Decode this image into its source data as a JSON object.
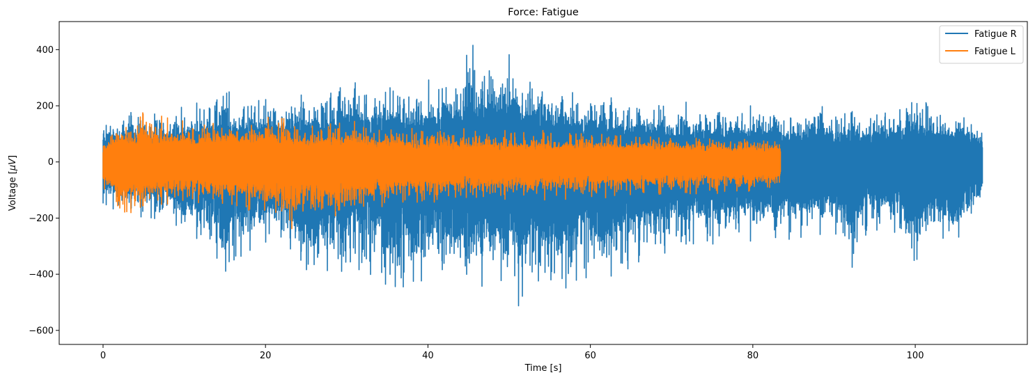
{
  "chart_data": {
    "type": "line",
    "title": "Force: Fatigue",
    "xlabel": "Time [s]",
    "ylabel_prefix": "Voltage [",
    "ylabel_unit": "μV",
    "ylabel_suffix": "]",
    "xlim": [
      -5.4,
      113.8
    ],
    "ylim": [
      -650,
      500
    ],
    "xticks": [
      0,
      20,
      40,
      60,
      80,
      100
    ],
    "yticks": [
      -600,
      -400,
      -200,
      0,
      200,
      400
    ],
    "xtick_labels": [
      "0",
      "20",
      "40",
      "60",
      "80",
      "100"
    ],
    "ytick_labels": [
      "−600",
      "−400",
      "−200",
      "0",
      "200",
      "400"
    ],
    "legend_position": "top-right",
    "grid": false,
    "series": [
      {
        "name": "Fatigue R",
        "color": "#1f77b4",
        "x": [
          0,
          2,
          4,
          6,
          8,
          10,
          12,
          14,
          15,
          16,
          18,
          20,
          22,
          24,
          26,
          28,
          30,
          31,
          32,
          34,
          35,
          36,
          38,
          40,
          42,
          44,
          45.5,
          46,
          48,
          50,
          51.5,
          52,
          54,
          55.5,
          56,
          58,
          60,
          62,
          64,
          66,
          68,
          70,
          72,
          74,
          76,
          78,
          80,
          82,
          84,
          86,
          88,
          90,
          92,
          94,
          96,
          98,
          100,
          102,
          104,
          106,
          108.3
        ],
        "upper": [
          170,
          180,
          200,
          170,
          190,
          200,
          220,
          250,
          320,
          230,
          240,
          250,
          230,
          260,
          250,
          270,
          300,
          350,
          270,
          290,
          280,
          300,
          270,
          300,
          320,
          330,
          450,
          380,
          380,
          400,
          330,
          300,
          330,
          280,
          300,
          270,
          260,
          230,
          230,
          240,
          230,
          220,
          230,
          210,
          220,
          210,
          200,
          200,
          190,
          190,
          200,
          190,
          200,
          180,
          190,
          200,
          260,
          200,
          190,
          200,
          150
        ],
        "lower": [
          -175,
          -190,
          -200,
          -210,
          -220,
          -290,
          -300,
          -360,
          -450,
          -380,
          -350,
          -330,
          -300,
          -400,
          -380,
          -400,
          -420,
          -370,
          -450,
          -400,
          -590,
          -460,
          -440,
          -470,
          -420,
          -500,
          -380,
          -500,
          -460,
          -440,
          -595,
          -450,
          -470,
          -520,
          -500,
          -440,
          -420,
          -450,
          -400,
          -380,
          -350,
          -360,
          -330,
          -310,
          -300,
          -300,
          -290,
          -280,
          -280,
          -300,
          -260,
          -270,
          -410,
          -260,
          -260,
          -270,
          -430,
          -250,
          -370,
          -290,
          -165
        ],
        "line_width": 1.6
      },
      {
        "name": "Fatigue L",
        "color": "#ff7f0e",
        "x": [
          0,
          1,
          2,
          3,
          4,
          5,
          5.5,
          6,
          8,
          10,
          12,
          14,
          16,
          18,
          20,
          22,
          23,
          24,
          26,
          28,
          29,
          30,
          32,
          34,
          36,
          38,
          40,
          45,
          50,
          55,
          60,
          65,
          70,
          75,
          80,
          83.4
        ],
        "upper": [
          90,
          120,
          150,
          140,
          130,
          225,
          200,
          170,
          160,
          150,
          140,
          160,
          150,
          155,
          160,
          175,
          150,
          145,
          140,
          150,
          145,
          150,
          140,
          130,
          130,
          125,
          120,
          120,
          115,
          115,
          110,
          105,
          100,
          95,
          90,
          90
        ],
        "lower": [
          -100,
          -150,
          -210,
          -190,
          -170,
          -230,
          -200,
          -170,
          -160,
          -160,
          -150,
          -170,
          -180,
          -175,
          -185,
          -200,
          -250,
          -200,
          -190,
          -200,
          -230,
          -180,
          -170,
          -165,
          -160,
          -150,
          -150,
          -140,
          -140,
          -135,
          -130,
          -125,
          -120,
          -115,
          -110,
          -100
        ],
        "line_width": 1.6
      }
    ]
  }
}
